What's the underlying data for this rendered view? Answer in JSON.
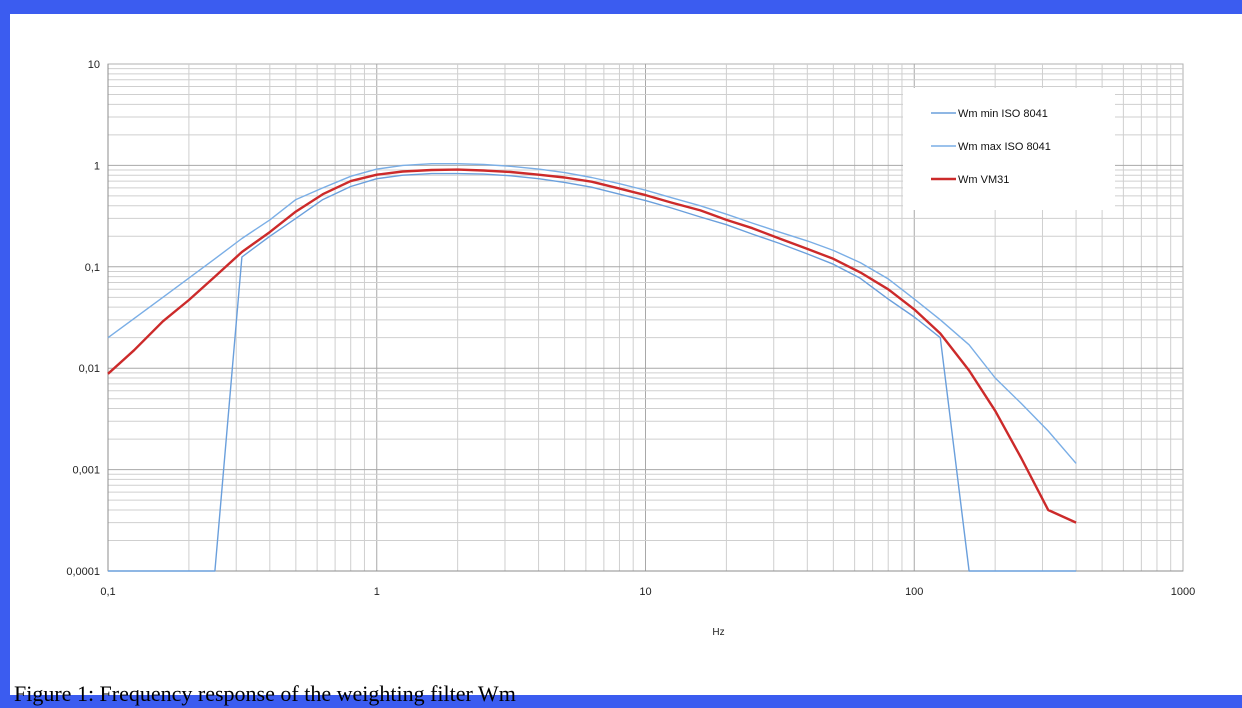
{
  "caption": "Figure 1: Frequency response of the weighting filter Wm",
  "chart_data": {
    "type": "line",
    "xscale": "log",
    "yscale": "log",
    "xlim": [
      0.1,
      1000
    ],
    "ylim": [
      0.0001,
      10
    ],
    "xlabel": "Hz",
    "ylabel": "",
    "grid": true,
    "legend_position": "top-right",
    "x_tick_labels": [
      "0,1",
      "1",
      "10",
      "100",
      "1000"
    ],
    "y_tick_labels": [
      "0,0001",
      "0,001",
      "0,01",
      "0,1",
      "1",
      "10"
    ],
    "series": [
      {
        "name": "Wm min ISO 8041",
        "color": "#6a9fdc",
        "points": [
          [
            0.1,
            0.0001
          ],
          [
            0.25,
            0.0001
          ],
          [
            0.315,
            0.125
          ],
          [
            0.4,
            0.2
          ],
          [
            0.5,
            0.3
          ],
          [
            0.63,
            0.46
          ],
          [
            0.8,
            0.62
          ],
          [
            1,
            0.74
          ],
          [
            1.25,
            0.8
          ],
          [
            1.6,
            0.83
          ],
          [
            2,
            0.83
          ],
          [
            2.5,
            0.82
          ],
          [
            3.15,
            0.79
          ],
          [
            4,
            0.74
          ],
          [
            5,
            0.68
          ],
          [
            6.3,
            0.61
          ],
          [
            8,
            0.52
          ],
          [
            10,
            0.45
          ],
          [
            12.5,
            0.38
          ],
          [
            16,
            0.31
          ],
          [
            20,
            0.26
          ],
          [
            25,
            0.21
          ],
          [
            31.5,
            0.17
          ],
          [
            40,
            0.134
          ],
          [
            50,
            0.106
          ],
          [
            63,
            0.077
          ],
          [
            80,
            0.048
          ],
          [
            100,
            0.032
          ],
          [
            125,
            0.02
          ],
          [
            160,
            0.0001
          ],
          [
            200,
            0.0001
          ],
          [
            250,
            0.0001
          ],
          [
            315,
            0.0001
          ],
          [
            400,
            0.0001
          ]
        ]
      },
      {
        "name": "Wm max ISO 8041",
        "color": "#7aaee6",
        "points": [
          [
            0.1,
            0.02
          ],
          [
            0.16,
            0.05
          ],
          [
            0.25,
            0.12
          ],
          [
            0.315,
            0.19
          ],
          [
            0.4,
            0.29
          ],
          [
            0.5,
            0.46
          ],
          [
            0.63,
            0.6
          ],
          [
            0.8,
            0.78
          ],
          [
            1,
            0.92
          ],
          [
            1.25,
            1.0
          ],
          [
            1.6,
            1.04
          ],
          [
            2,
            1.04
          ],
          [
            2.5,
            1.02
          ],
          [
            3.15,
            0.98
          ],
          [
            4,
            0.92
          ],
          [
            5,
            0.85
          ],
          [
            6.3,
            0.76
          ],
          [
            8,
            0.66
          ],
          [
            10,
            0.57
          ],
          [
            12.5,
            0.48
          ],
          [
            16,
            0.4
          ],
          [
            20,
            0.33
          ],
          [
            25,
            0.27
          ],
          [
            31.5,
            0.22
          ],
          [
            40,
            0.18
          ],
          [
            50,
            0.145
          ],
          [
            63,
            0.11
          ],
          [
            80,
            0.076
          ],
          [
            100,
            0.048
          ],
          [
            125,
            0.03
          ],
          [
            160,
            0.017
          ],
          [
            200,
            0.008
          ],
          [
            250,
            0.0045
          ],
          [
            315,
            0.0024
          ],
          [
            400,
            0.00115
          ]
        ]
      },
      {
        "name": "Wm VM31",
        "color": "#cc2a2a",
        "points": [
          [
            0.1,
            0.0088
          ],
          [
            0.125,
            0.015
          ],
          [
            0.16,
            0.029
          ],
          [
            0.2,
            0.047
          ],
          [
            0.25,
            0.08
          ],
          [
            0.315,
            0.14
          ],
          [
            0.4,
            0.22
          ],
          [
            0.5,
            0.35
          ],
          [
            0.63,
            0.52
          ],
          [
            0.8,
            0.7
          ],
          [
            1,
            0.81
          ],
          [
            1.25,
            0.87
          ],
          [
            1.6,
            0.9
          ],
          [
            2,
            0.91
          ],
          [
            2.5,
            0.89
          ],
          [
            3.15,
            0.86
          ],
          [
            4,
            0.81
          ],
          [
            5,
            0.76
          ],
          [
            6.3,
            0.69
          ],
          [
            8,
            0.59
          ],
          [
            10,
            0.51
          ],
          [
            12.5,
            0.43
          ],
          [
            16,
            0.36
          ],
          [
            20,
            0.29
          ],
          [
            25,
            0.24
          ],
          [
            31.5,
            0.19
          ],
          [
            40,
            0.15
          ],
          [
            50,
            0.12
          ],
          [
            63,
            0.088
          ],
          [
            80,
            0.06
          ],
          [
            100,
            0.038
          ],
          [
            125,
            0.022
          ],
          [
            160,
            0.0095
          ],
          [
            200,
            0.0038
          ],
          [
            250,
            0.0013
          ],
          [
            315,
            0.0004
          ],
          [
            400,
            0.0003
          ]
        ]
      }
    ]
  }
}
